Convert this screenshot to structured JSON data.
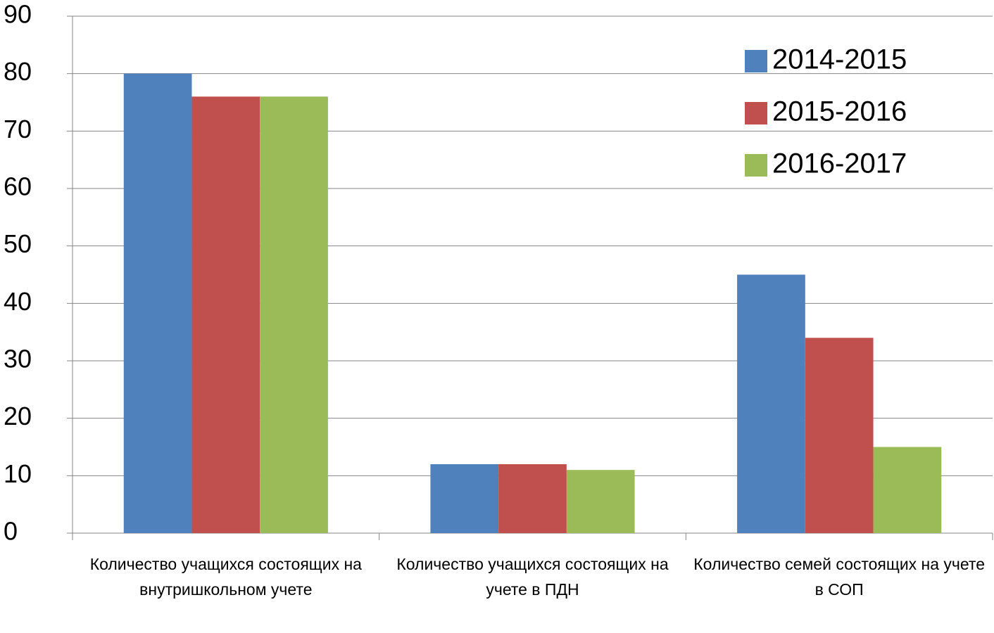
{
  "chart_data": {
    "type": "bar",
    "categories": [
      "Количество учащихся состоящих на внутришкольном учете",
      "Количество учащихся состоящих на учете в ПДН",
      "Количество семей состоящих на учете в СОП"
    ],
    "series": [
      {
        "name": "2014-2015",
        "color": "#4f81bd",
        "values": [
          80,
          12,
          45
        ]
      },
      {
        "name": "2015-2016",
        "color": "#c0504d",
        "values": [
          76,
          12,
          34
        ]
      },
      {
        "name": "2016-2017",
        "color": "#9bbb59",
        "values": [
          76,
          11,
          15
        ]
      }
    ],
    "ylim": [
      0,
      90
    ],
    "yticks": [
      0,
      10,
      20,
      30,
      40,
      50,
      60,
      70,
      80,
      90
    ],
    "grid": true,
    "legend": "top-right"
  }
}
